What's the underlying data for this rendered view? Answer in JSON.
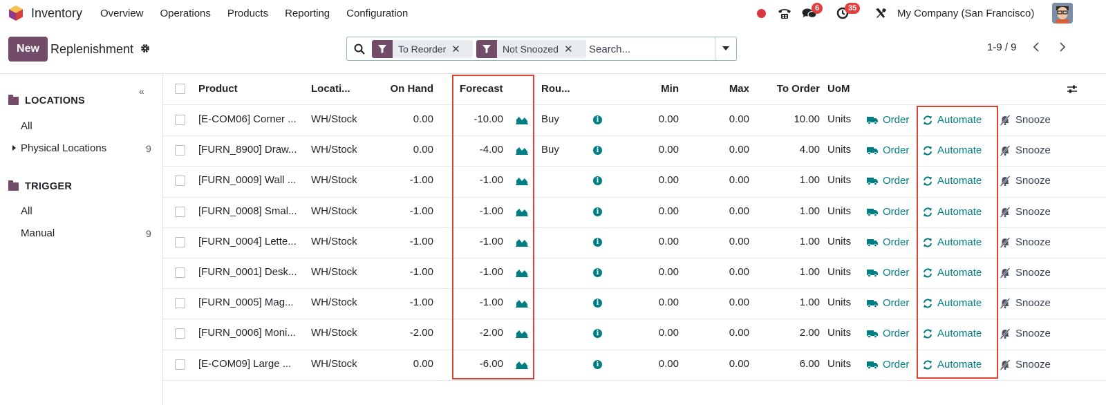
{
  "navbar": {
    "app_name": "Inventory",
    "menu": [
      "Overview",
      "Operations",
      "Products",
      "Reporting",
      "Configuration"
    ],
    "messages_badge": "6",
    "activities_badge": "35",
    "company": "My Company (San Francisco)"
  },
  "control": {
    "new_label": "New",
    "title": "Replenishment",
    "search": {
      "facets": [
        "To Reorder",
        "Not Snoozed"
      ],
      "placeholder": "Search..."
    },
    "pager": "1-9 / 9"
  },
  "sidebar": {
    "sections": [
      {
        "title": "LOCATIONS",
        "items": [
          {
            "label": "All",
            "count": ""
          },
          {
            "label": "Physical Locations",
            "count": "9"
          }
        ]
      },
      {
        "title": "TRIGGER",
        "items": [
          {
            "label": "All",
            "count": ""
          },
          {
            "label": "Manual",
            "count": "9"
          }
        ]
      }
    ]
  },
  "table": {
    "headers": {
      "product": "Product",
      "location": "Locati...",
      "on_hand": "On Hand",
      "forecast": "Forecast",
      "route": "Rou...",
      "min": "Min",
      "max": "Max",
      "to_order": "To Order",
      "uom": "UoM"
    },
    "action_labels": {
      "order": "Order",
      "automate": "Automate",
      "snooze": "Snooze"
    },
    "rows": [
      {
        "product": "[E-COM06] Corner ...",
        "location": "WH/Stock",
        "on_hand": "0.00",
        "forecast": "-10.00",
        "route": "Buy",
        "min": "0.00",
        "max": "0.00",
        "to_order": "10.00",
        "uom": "Units"
      },
      {
        "product": "[FURN_8900] Draw...",
        "location": "WH/Stock",
        "on_hand": "0.00",
        "forecast": "-4.00",
        "route": "Buy",
        "min": "0.00",
        "max": "0.00",
        "to_order": "4.00",
        "uom": "Units"
      },
      {
        "product": "[FURN_0009] Wall ...",
        "location": "WH/Stock",
        "on_hand": "-1.00",
        "forecast": "-1.00",
        "route": "",
        "min": "0.00",
        "max": "0.00",
        "to_order": "1.00",
        "uom": "Units"
      },
      {
        "product": "[FURN_0008] Smal...",
        "location": "WH/Stock",
        "on_hand": "-1.00",
        "forecast": "-1.00",
        "route": "",
        "min": "0.00",
        "max": "0.00",
        "to_order": "1.00",
        "uom": "Units"
      },
      {
        "product": "[FURN_0004] Lette...",
        "location": "WH/Stock",
        "on_hand": "-1.00",
        "forecast": "-1.00",
        "route": "",
        "min": "0.00",
        "max": "0.00",
        "to_order": "1.00",
        "uom": "Units"
      },
      {
        "product": "[FURN_0001] Desk...",
        "location": "WH/Stock",
        "on_hand": "-1.00",
        "forecast": "-1.00",
        "route": "",
        "min": "0.00",
        "max": "0.00",
        "to_order": "1.00",
        "uom": "Units"
      },
      {
        "product": "[FURN_0005] Mag...",
        "location": "WH/Stock",
        "on_hand": "-1.00",
        "forecast": "-1.00",
        "route": "",
        "min": "0.00",
        "max": "0.00",
        "to_order": "1.00",
        "uom": "Units"
      },
      {
        "product": "[FURN_0006] Moni...",
        "location": "WH/Stock",
        "on_hand": "-2.00",
        "forecast": "-2.00",
        "route": "",
        "min": "0.00",
        "max": "0.00",
        "to_order": "2.00",
        "uom": "Units"
      },
      {
        "product": "[E-COM09] Large ...",
        "location": "WH/Stock",
        "on_hand": "0.00",
        "forecast": "-6.00",
        "route": "",
        "min": "0.00",
        "max": "0.00",
        "to_order": "6.00",
        "uom": "Units"
      }
    ]
  },
  "colors": {
    "brand": "#714b67",
    "accent": "#017e84",
    "highlight": "#e0402f"
  }
}
